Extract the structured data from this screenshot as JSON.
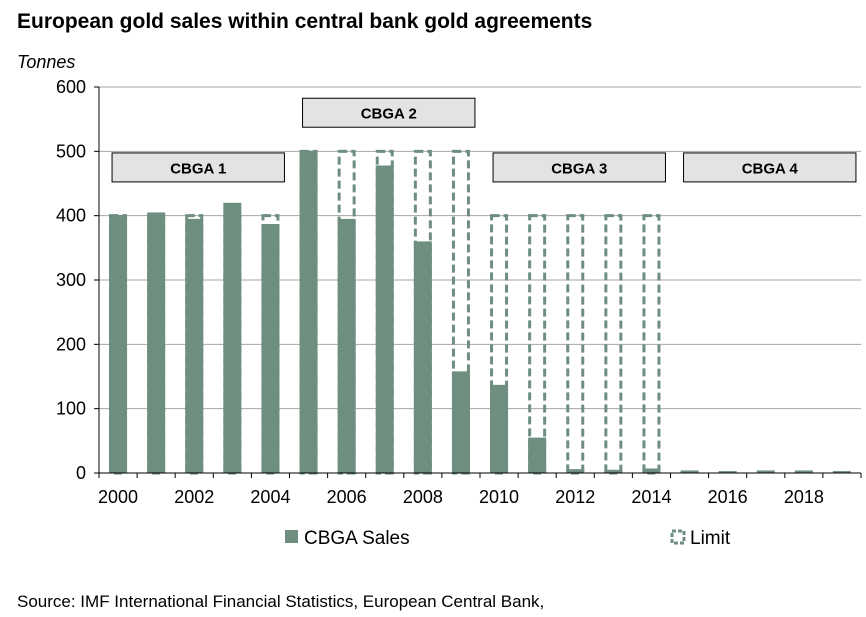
{
  "title": "European gold sales within central bank gold agreements",
  "source": "Source: IMF International Financial Statistics, European Central Bank,",
  "colors": {
    "sales": "#6e8e80",
    "limit_stroke": "#6e8e80",
    "grid": "#a6a6a6",
    "agreement_fill": "#e3e3e3"
  },
  "chart_data": {
    "type": "bar",
    "ylabel": "Tonnes",
    "ylim": [
      0,
      600
    ],
    "yticks": [
      0,
      100,
      200,
      300,
      400,
      500,
      600
    ],
    "xtick_labels": [
      "2000",
      "2002",
      "2004",
      "2006",
      "2008",
      "2010",
      "2012",
      "2014",
      "2016",
      "2018"
    ],
    "grid": true,
    "legend_position": "bottom",
    "categories": [
      "2000",
      "2001",
      "2002",
      "2003",
      "2004",
      "2005",
      "2006",
      "2007",
      "2008",
      "2009",
      "2010",
      "2011",
      "2012",
      "2013",
      "2014",
      "2015",
      "2016",
      "2017",
      "2018",
      "2019"
    ],
    "series": [
      {
        "name": "CBGA Sales",
        "style": "solid",
        "values": [
          401,
          405,
          395,
          420,
          387,
          501,
          395,
          478,
          360,
          158,
          137,
          55,
          6,
          5,
          7,
          4,
          3,
          4,
          4,
          3
        ]
      },
      {
        "name": "Limit",
        "style": "dashed-outline",
        "values": [
          400,
          400,
          400,
          400,
          400,
          500,
          500,
          500,
          500,
          500,
          400,
          400,
          400,
          400,
          400,
          0,
          0,
          0,
          0,
          0
        ]
      }
    ],
    "annotations": [
      {
        "label": "CBGA 1",
        "from": "2000",
        "to": "2004",
        "level": 475
      },
      {
        "label": "CBGA 2",
        "from": "2005",
        "to": "2009",
        "level": 560
      },
      {
        "label": "CBGA 3",
        "from": "2010",
        "to": "2014",
        "level": 475
      },
      {
        "label": "CBGA 4",
        "from": "2015",
        "to": "2019",
        "level": 475
      }
    ]
  }
}
